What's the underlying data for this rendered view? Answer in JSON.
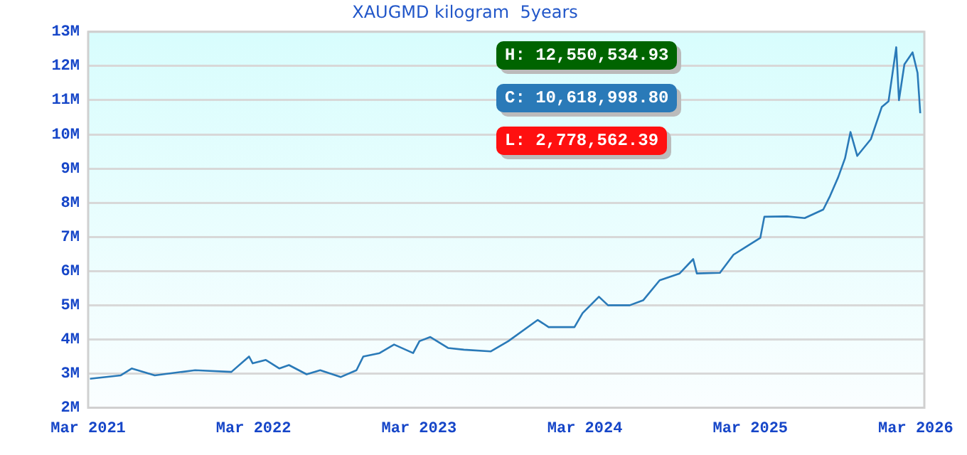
{
  "chart_data": {
    "type": "line",
    "title": "XAUGMD kilogram  5years",
    "x": [
      "2021-03-05",
      "2021-05-12",
      "2021-06-05",
      "2021-07-26",
      "2021-10-23",
      "2022-01-11",
      "2022-02-19",
      "2022-02-27",
      "2022-03-28",
      "2022-04-27",
      "2022-05-18",
      "2022-06-26",
      "2022-07-26",
      "2022-09-09",
      "2022-10-14",
      "2022-10-29",
      "2022-12-04",
      "2023-01-05",
      "2023-02-16",
      "2023-03-02",
      "2023-03-26",
      "2023-05-04",
      "2023-06-08",
      "2023-08-06",
      "2023-09-14",
      "2023-11-18",
      "2023-12-12",
      "2024-02-07",
      "2024-02-25",
      "2024-04-01",
      "2024-04-21",
      "2024-06-08",
      "2024-07-08",
      "2024-08-13",
      "2024-09-26",
      "2024-10-26",
      "2024-11-03",
      "2024-12-24",
      "2025-01-23",
      "2025-02-16",
      "2025-03-23",
      "2025-04-01",
      "2025-05-21",
      "2025-06-29",
      "2025-08-09",
      "2025-08-24",
      "2025-09-11",
      "2025-09-26",
      "2025-10-08",
      "2025-10-23",
      "2025-11-22",
      "2025-12-16",
      "2025-12-31",
      "2026-01-17",
      "2026-01-23",
      "2026-02-04",
      "2026-02-22",
      "2026-03-05",
      "2026-03-11"
    ],
    "series": [
      {
        "color": "#2a7ab8",
        "values": [
          2850000,
          2950000,
          3150000,
          2950000,
          3100000,
          3050000,
          3500000,
          3300000,
          3400000,
          3150000,
          3250000,
          2980000,
          3100000,
          2900000,
          3100000,
          3500000,
          3600000,
          3850000,
          3600000,
          3950000,
          4070000,
          3750000,
          3700000,
          3650000,
          3950000,
          4570000,
          4360000,
          4360000,
          4770000,
          5250000,
          5000000,
          5000000,
          5150000,
          5730000,
          5930000,
          6350000,
          5930000,
          5950000,
          6480000,
          6680000,
          6970000,
          7590000,
          7600000,
          7550000,
          7800000,
          8200000,
          8750000,
          9300000,
          10070000,
          9370000,
          9860000,
          10800000,
          10970000,
          12550000,
          11000000,
          12050000,
          12400000,
          11800000,
          10620000
        ]
      }
    ],
    "xlim": [
      "2021-03-01",
      "2026-03-20"
    ],
    "xticks": [
      {
        "value": "2021-03-01",
        "label": "Mar 2021"
      },
      {
        "value": "2022-03-01",
        "label": "Mar 2022"
      },
      {
        "value": "2023-03-01",
        "label": "Mar 2023"
      },
      {
        "value": "2024-03-01",
        "label": "Mar 2024"
      },
      {
        "value": "2025-03-01",
        "label": "Mar 2025"
      },
      {
        "value": "2026-03-01",
        "label": "Mar 2026"
      }
    ],
    "ylim": [
      2000000,
      13000000
    ],
    "yticks": [
      {
        "value": 2000000,
        "label": "2M"
      },
      {
        "value": 3000000,
        "label": "3M"
      },
      {
        "value": 4000000,
        "label": "4M"
      },
      {
        "value": 5000000,
        "label": "5M"
      },
      {
        "value": 6000000,
        "label": "6M"
      },
      {
        "value": 7000000,
        "label": "7M"
      },
      {
        "value": 8000000,
        "label": "8M"
      },
      {
        "value": 9000000,
        "label": "9M"
      },
      {
        "value": 10000000,
        "label": "10M"
      },
      {
        "value": 11000000,
        "label": "11M"
      },
      {
        "value": 12000000,
        "label": "12M"
      },
      {
        "value": 13000000,
        "label": "13M"
      }
    ],
    "grid": "y",
    "legend": false,
    "marker": "none",
    "line_style": "solid",
    "annotations": [
      "H: 12,550,534.93",
      "C: 10,618,998.80",
      "L: 2,778,562.39"
    ]
  }
}
